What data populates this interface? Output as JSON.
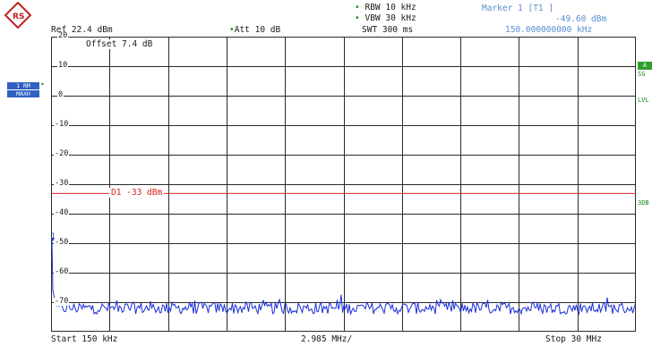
{
  "header": {
    "rbw": "RBW 10 kHz",
    "vbw": "VBW 30 kHz",
    "swt": "SWT 300 ms",
    "ref": "Ref  22.4 dBm",
    "att": "Att  10 dB",
    "marker_title": "Marker 1 [T1 ]",
    "marker_level": "-49.60 dBm",
    "marker_freq": "150.000000000 kHz"
  },
  "plot": {
    "offset": "Offset  7.4 dB",
    "y_labels": [
      "20",
      "10",
      "0",
      "-10",
      "-20",
      "-30",
      "-40",
      "-50",
      "-60",
      "-70"
    ],
    "display_line": "D1  -33 dBm",
    "display_line_value": -33,
    "y_range": [
      -80,
      20
    ],
    "noise_floor": -72,
    "marker_level": -49.6,
    "marker_label": "1"
  },
  "left_badges": [
    "1 RM",
    "MAXH"
  ],
  "right_tags": [
    "A",
    "SG",
    "LVL",
    "3DB"
  ],
  "footer": {
    "start": "Start  150 kHz",
    "span": "2.985 MHz/",
    "stop": "Stop  30 MHz"
  },
  "colors": {
    "trace": "#1a2fd8",
    "display_line": "#d42020",
    "grid": "#2a2a2a",
    "badge": "#3060c0"
  }
}
